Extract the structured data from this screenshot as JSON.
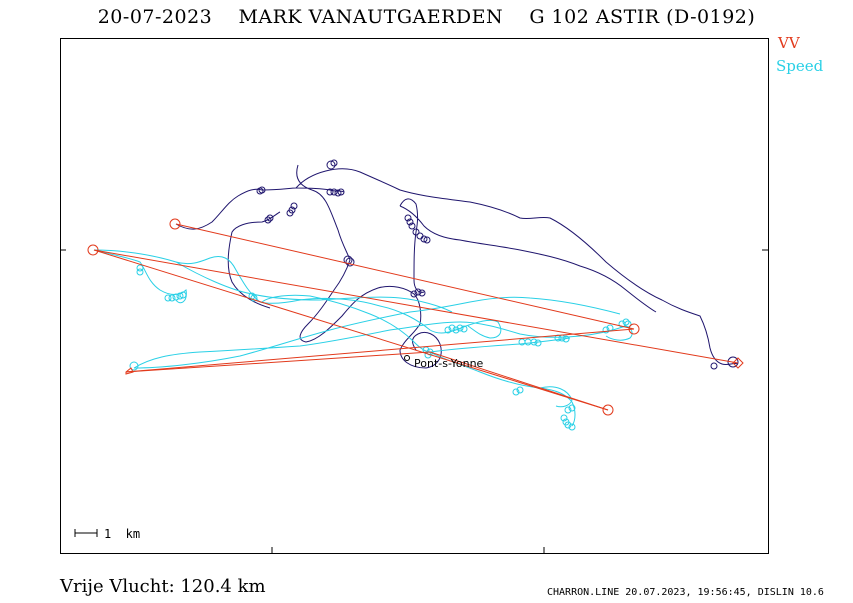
{
  "header": {
    "date": "20-07-2023",
    "pilot": "MARK VANAUTGAERDEN",
    "glider": "G 102 ASTIR (D-0192)"
  },
  "legend": {
    "vv_label": "VV",
    "vv_color": "#e23a1c",
    "speed_label": "Speed",
    "speed_color": "#2ad0e6",
    "track_color": "#20166e"
  },
  "map": {
    "scale_label": "1  km",
    "place_label": "Pont-s-Yonne"
  },
  "footer": {
    "distance_text": "Vrije Vlucht:  120.4 km",
    "credit_text": "CHARRON.LINE 20.07.2023, 19:56:45, DISLIN 10.6"
  }
}
